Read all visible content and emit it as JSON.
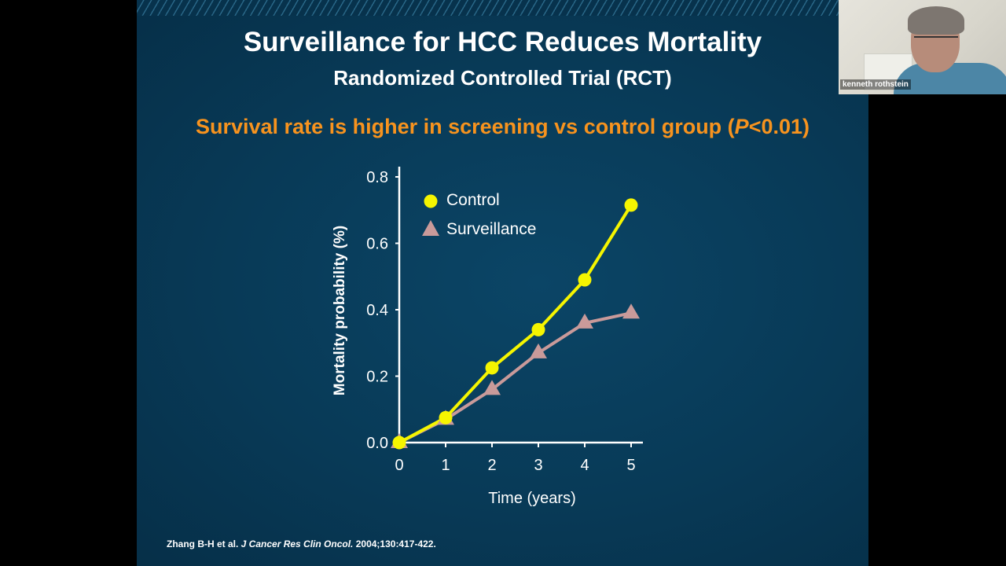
{
  "slide": {
    "title": "Surveillance for HCC Reduces Mortality",
    "subtitle": "Randomized Controlled Trial (RCT)",
    "headline_prefix": "Survival rate is higher in screening vs control group (",
    "headline_p": "P",
    "headline_suffix": "<0.01)",
    "citation_authors": "Zhang  B-H et al. ",
    "citation_journal": "J Cancer Res Clin Oncol.",
    "citation_details": " 2004;130:417-422."
  },
  "video": {
    "participant_name": "kenneth rothstein"
  },
  "colors": {
    "control": "#f5f500",
    "surveillance": "#c99a9a",
    "headline": "#f7931e",
    "background": "#083a57"
  },
  "chart_data": {
    "type": "line",
    "title": "",
    "xlabel": "Time (years)",
    "ylabel": "Mortality probability (%)",
    "x": [
      0,
      1,
      2,
      3,
      4,
      5
    ],
    "xlim": [
      0,
      5
    ],
    "ylim": [
      0,
      0.8
    ],
    "x_ticks": [
      "0",
      "1",
      "2",
      "3",
      "4",
      "5"
    ],
    "y_ticks": [
      "0.0",
      "0.2",
      "0.4",
      "0.6",
      "0.8"
    ],
    "grid": false,
    "legend_position": "top-left",
    "series": [
      {
        "name": "Control",
        "marker": "circle",
        "values": [
          0,
          0.075,
          0.225,
          0.34,
          0.49,
          0.715
        ]
      },
      {
        "name": "Surveillance",
        "marker": "triangle",
        "values": [
          0,
          0.07,
          0.16,
          0.27,
          0.36,
          0.39
        ]
      }
    ]
  }
}
